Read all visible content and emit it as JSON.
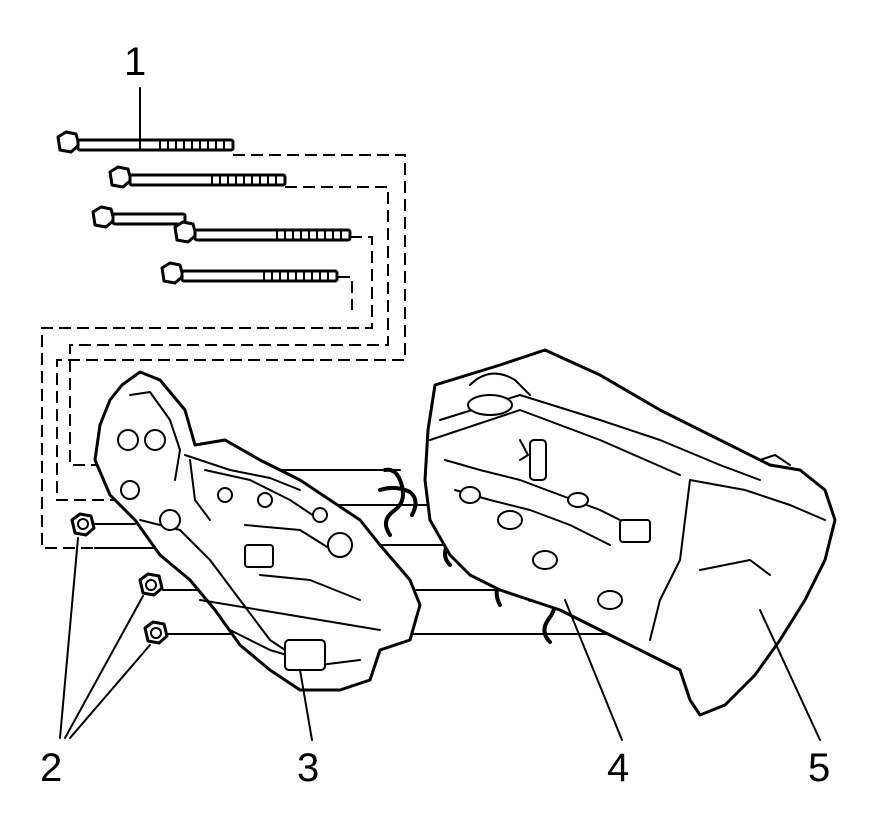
{
  "callouts": {
    "c1": "1",
    "c2": "2",
    "c3": "3",
    "c4": "4",
    "c5": "5"
  },
  "colors": {
    "ink": "#000000",
    "background": "#ffffff"
  }
}
